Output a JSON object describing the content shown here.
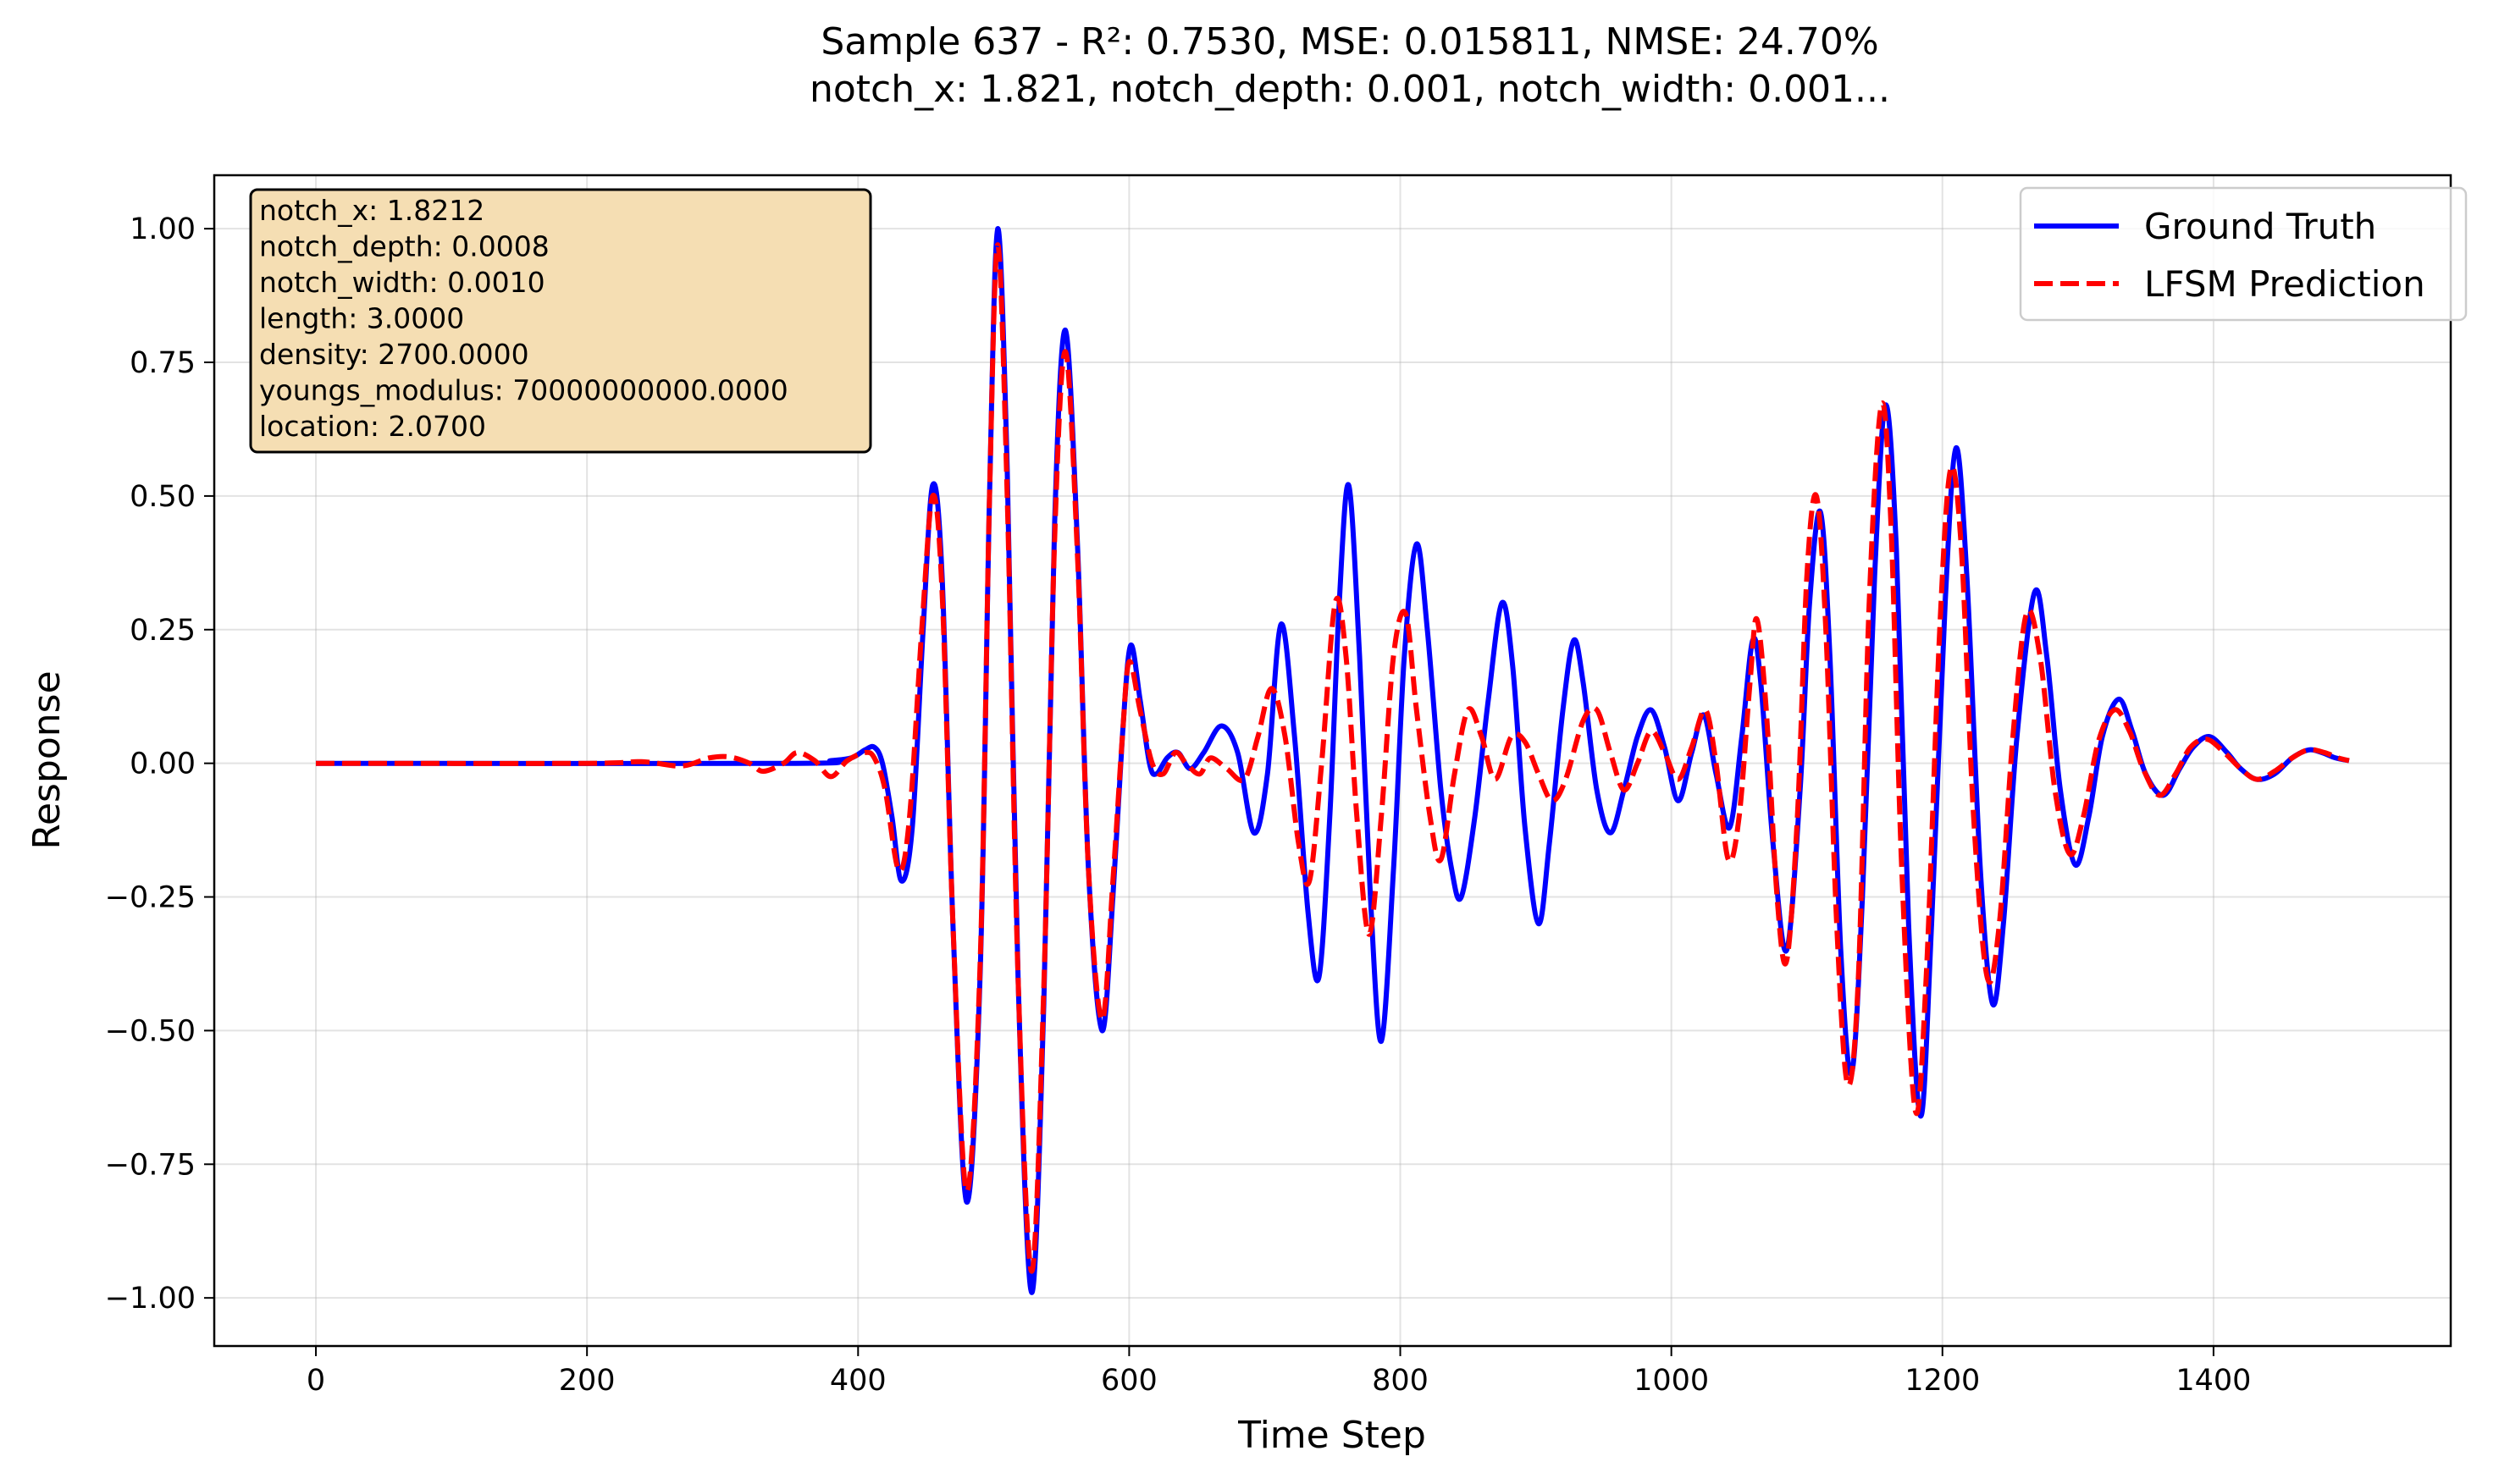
{
  "chart_data": {
    "type": "line",
    "title_line1": "Sample 637 - R²: 0.7530, MSE: 0.015811, NMSE: 24.70%",
    "title_line2": "notch_x: 1.821, notch_depth: 0.001, notch_width: 0.001...",
    "xlabel": "Time Step",
    "ylabel": "Response",
    "xlim": [
      -75,
      1575
    ],
    "ylim": [
      -1.09,
      1.1
    ],
    "xticks": [
      0,
      200,
      400,
      600,
      800,
      1000,
      1200,
      1400
    ],
    "xtick_labels": [
      "0",
      "200",
      "400",
      "600",
      "800",
      "1000",
      "1200",
      "1400"
    ],
    "yticks": [
      -1.0,
      -0.75,
      -0.5,
      -0.25,
      0.0,
      0.25,
      0.5,
      0.75,
      1.0
    ],
    "ytick_labels": [
      "−1.00",
      "−0.75",
      "−0.50",
      "−0.25",
      "0.00",
      "0.25",
      "0.50",
      "0.75",
      "1.00"
    ],
    "grid": true,
    "legend_position": "top-right",
    "info_box": [
      "notch_x: 1.8212",
      "notch_depth: 0.0008",
      "notch_width: 0.0010",
      "length: 3.0000",
      "density: 2700.0000",
      "youngs_modulus: 70000000000.0000",
      "location: 2.0700"
    ],
    "series": [
      {
        "name": "Ground Truth",
        "color": "#0000ff",
        "style": "solid",
        "points": [
          [
            0,
            0
          ],
          [
            350,
            0
          ],
          [
            380,
            0.005
          ],
          [
            395,
            0.01
          ],
          [
            405,
            0.025
          ],
          [
            412,
            0.03
          ],
          [
            418,
            0.0
          ],
          [
            425,
            -0.1
          ],
          [
            432,
            -0.22
          ],
          [
            440,
            -0.12
          ],
          [
            448,
            0.25
          ],
          [
            455,
            0.52
          ],
          [
            462,
            0.35
          ],
          [
            470,
            -0.3
          ],
          [
            480,
            -0.82
          ],
          [
            490,
            -0.4
          ],
          [
            497,
            0.5
          ],
          [
            503,
            1.0
          ],
          [
            510,
            0.55
          ],
          [
            518,
            -0.4
          ],
          [
            528,
            -0.99
          ],
          [
            537,
            -0.45
          ],
          [
            545,
            0.45
          ],
          [
            553,
            0.81
          ],
          [
            562,
            0.4
          ],
          [
            570,
            -0.2
          ],
          [
            580,
            -0.5
          ],
          [
            588,
            -0.25
          ],
          [
            595,
            0.05
          ],
          [
            601,
            0.22
          ],
          [
            608,
            0.12
          ],
          [
            615,
            0.0
          ],
          [
            620,
            -0.02
          ],
          [
            628,
            0.01
          ],
          [
            636,
            0.02
          ],
          [
            645,
            -0.01
          ],
          [
            655,
            0.02
          ],
          [
            668,
            0.07
          ],
          [
            680,
            0.02
          ],
          [
            692,
            -0.13
          ],
          [
            702,
            -0.02
          ],
          [
            712,
            0.26
          ],
          [
            722,
            0.05
          ],
          [
            732,
            -0.28
          ],
          [
            740,
            -0.4
          ],
          [
            748,
            -0.1
          ],
          [
            755,
            0.3
          ],
          [
            762,
            0.52
          ],
          [
            770,
            0.2
          ],
          [
            778,
            -0.25
          ],
          [
            786,
            -0.52
          ],
          [
            795,
            -0.2
          ],
          [
            803,
            0.2
          ],
          [
            812,
            0.41
          ],
          [
            820,
            0.25
          ],
          [
            830,
            -0.05
          ],
          [
            838,
            -0.2
          ],
          [
            845,
            -0.25
          ],
          [
            855,
            -0.1
          ],
          [
            865,
            0.12
          ],
          [
            875,
            0.3
          ],
          [
            883,
            0.18
          ],
          [
            892,
            -0.12
          ],
          [
            902,
            -0.3
          ],
          [
            910,
            -0.15
          ],
          [
            920,
            0.1
          ],
          [
            928,
            0.23
          ],
          [
            935,
            0.15
          ],
          [
            945,
            -0.05
          ],
          [
            955,
            -0.13
          ],
          [
            965,
            -0.05
          ],
          [
            975,
            0.05
          ],
          [
            985,
            0.1
          ],
          [
            995,
            0.03
          ],
          [
            1005,
            -0.07
          ],
          [
            1015,
            0.02
          ],
          [
            1024,
            0.09
          ],
          [
            1033,
            -0.02
          ],
          [
            1043,
            -0.12
          ],
          [
            1052,
            0.05
          ],
          [
            1060,
            0.23
          ],
          [
            1066,
            0.15
          ],
          [
            1075,
            -0.15
          ],
          [
            1085,
            -0.35
          ],
          [
            1095,
            -0.05
          ],
          [
            1102,
            0.3
          ],
          [
            1110,
            0.47
          ],
          [
            1117,
            0.2
          ],
          [
            1125,
            -0.35
          ],
          [
            1133,
            -0.58
          ],
          [
            1141,
            -0.25
          ],
          [
            1150,
            0.35
          ],
          [
            1158,
            0.67
          ],
          [
            1166,
            0.4
          ],
          [
            1175,
            -0.3
          ],
          [
            1184,
            -0.66
          ],
          [
            1192,
            -0.3
          ],
          [
            1202,
            0.3
          ],
          [
            1210,
            0.59
          ],
          [
            1218,
            0.35
          ],
          [
            1228,
            -0.2
          ],
          [
            1237,
            -0.45
          ],
          [
            1245,
            -0.3
          ],
          [
            1255,
            0.05
          ],
          [
            1268,
            0.32
          ],
          [
            1277,
            0.2
          ],
          [
            1287,
            -0.05
          ],
          [
            1298,
            -0.19
          ],
          [
            1308,
            -0.1
          ],
          [
            1318,
            0.05
          ],
          [
            1330,
            0.12
          ],
          [
            1340,
            0.06
          ],
          [
            1350,
            -0.02
          ],
          [
            1363,
            -0.06
          ],
          [
            1375,
            -0.01
          ],
          [
            1385,
            0.03
          ],
          [
            1397,
            0.05
          ],
          [
            1410,
            0.02
          ],
          [
            1420,
            -0.01
          ],
          [
            1432,
            -0.03
          ],
          [
            1445,
            -0.02
          ],
          [
            1458,
            0.01
          ],
          [
            1470,
            0.025
          ],
          [
            1480,
            0.02
          ],
          [
            1490,
            0.01
          ],
          [
            1500,
            0.005
          ]
        ]
      },
      {
        "name": "LFSM Prediction",
        "color": "#ff0000",
        "style": "dashed",
        "points": [
          [
            0,
            0
          ],
          [
            200,
            0
          ],
          [
            240,
            0.003
          ],
          [
            270,
            -0.005
          ],
          [
            290,
            0.01
          ],
          [
            305,
            0.012
          ],
          [
            320,
            0.0
          ],
          [
            330,
            -0.015
          ],
          [
            345,
            0.0
          ],
          [
            355,
            0.02
          ],
          [
            368,
            0.005
          ],
          [
            380,
            -0.025
          ],
          [
            392,
            0.005
          ],
          [
            405,
            0.02
          ],
          [
            412,
            0.01
          ],
          [
            420,
            -0.05
          ],
          [
            430,
            -0.2
          ],
          [
            438,
            -0.1
          ],
          [
            447,
            0.25
          ],
          [
            455,
            0.5
          ],
          [
            462,
            0.32
          ],
          [
            470,
            -0.3
          ],
          [
            480,
            -0.8
          ],
          [
            490,
            -0.38
          ],
          [
            497,
            0.5
          ],
          [
            503,
            0.97
          ],
          [
            510,
            0.5
          ],
          [
            518,
            -0.4
          ],
          [
            528,
            -0.95
          ],
          [
            537,
            -0.42
          ],
          [
            545,
            0.42
          ],
          [
            553,
            0.77
          ],
          [
            562,
            0.38
          ],
          [
            570,
            -0.2
          ],
          [
            580,
            -0.48
          ],
          [
            588,
            -0.22
          ],
          [
            595,
            0.05
          ],
          [
            600,
            0.19
          ],
          [
            608,
            0.1
          ],
          [
            617,
            0.0
          ],
          [
            625,
            -0.02
          ],
          [
            634,
            0.02
          ],
          [
            642,
            0.0
          ],
          [
            652,
            -0.02
          ],
          [
            660,
            0.01
          ],
          [
            672,
            -0.01
          ],
          [
            685,
            -0.03
          ],
          [
            695,
            0.05
          ],
          [
            705,
            0.14
          ],
          [
            715,
            0.05
          ],
          [
            725,
            -0.15
          ],
          [
            733,
            -0.22
          ],
          [
            742,
            0.0
          ],
          [
            752,
            0.3
          ],
          [
            760,
            0.2
          ],
          [
            768,
            -0.1
          ],
          [
            777,
            -0.32
          ],
          [
            786,
            -0.1
          ],
          [
            795,
            0.2
          ],
          [
            804,
            0.28
          ],
          [
            812,
            0.1
          ],
          [
            822,
            -0.1
          ],
          [
            830,
            -0.18
          ],
          [
            840,
            -0.02
          ],
          [
            850,
            0.1
          ],
          [
            860,
            0.05
          ],
          [
            870,
            -0.03
          ],
          [
            882,
            0.05
          ],
          [
            892,
            0.04
          ],
          [
            902,
            -0.02
          ],
          [
            912,
            -0.07
          ],
          [
            922,
            -0.03
          ],
          [
            935,
            0.08
          ],
          [
            945,
            0.1
          ],
          [
            955,
            0.02
          ],
          [
            965,
            -0.05
          ],
          [
            975,
            0.0
          ],
          [
            985,
            0.06
          ],
          [
            995,
            0.02
          ],
          [
            1005,
            -0.03
          ],
          [
            1015,
            0.03
          ],
          [
            1025,
            0.1
          ],
          [
            1033,
            0.0
          ],
          [
            1042,
            -0.18
          ],
          [
            1050,
            -0.1
          ],
          [
            1058,
            0.15
          ],
          [
            1063,
            0.27
          ],
          [
            1070,
            0.1
          ],
          [
            1078,
            -0.25
          ],
          [
            1085,
            -0.37
          ],
          [
            1093,
            -0.1
          ],
          [
            1100,
            0.35
          ],
          [
            1107,
            0.5
          ],
          [
            1114,
            0.25
          ],
          [
            1122,
            -0.3
          ],
          [
            1130,
            -0.6
          ],
          [
            1138,
            -0.4
          ],
          [
            1146,
            0.3
          ],
          [
            1155,
            0.67
          ],
          [
            1162,
            0.45
          ],
          [
            1170,
            -0.2
          ],
          [
            1180,
            -0.65
          ],
          [
            1188,
            -0.4
          ],
          [
            1198,
            0.25
          ],
          [
            1206,
            0.55
          ],
          [
            1214,
            0.4
          ],
          [
            1223,
            -0.1
          ],
          [
            1233,
            -0.4
          ],
          [
            1242,
            -0.3
          ],
          [
            1252,
            0.05
          ],
          [
            1262,
            0.28
          ],
          [
            1272,
            0.2
          ],
          [
            1283,
            -0.05
          ],
          [
            1294,
            -0.17
          ],
          [
            1304,
            -0.1
          ],
          [
            1315,
            0.04
          ],
          [
            1327,
            0.1
          ],
          [
            1338,
            0.06
          ],
          [
            1348,
            -0.01
          ],
          [
            1360,
            -0.06
          ],
          [
            1372,
            -0.02
          ],
          [
            1383,
            0.03
          ],
          [
            1395,
            0.045
          ],
          [
            1408,
            0.02
          ],
          [
            1420,
            -0.01
          ],
          [
            1432,
            -0.03
          ],
          [
            1445,
            -0.015
          ],
          [
            1458,
            0.01
          ],
          [
            1470,
            0.025
          ],
          [
            1482,
            0.02
          ],
          [
            1492,
            0.01
          ],
          [
            1500,
            0.005
          ]
        ]
      }
    ]
  }
}
